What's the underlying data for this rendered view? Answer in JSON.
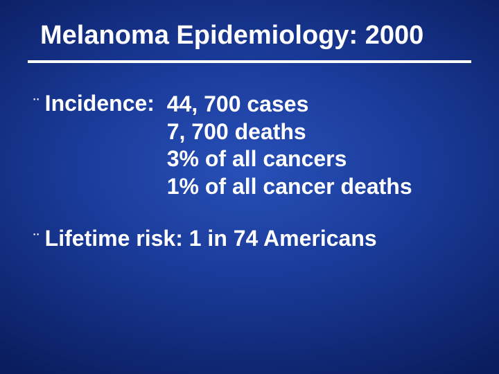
{
  "slide": {
    "title": "Melanoma Epidemiology: 2000",
    "background": {
      "gradient_center": "#2850b8",
      "gradient_mid": "#1a3a98",
      "gradient_outer": "#0a1e60",
      "gradient_edge": "#020830"
    },
    "title_style": {
      "fontsize": 38,
      "fontweight": "bold",
      "color": "#ffffff",
      "underline_color": "#ffffff",
      "underline_width": 4
    },
    "body_style": {
      "fontsize": 32,
      "fontweight": "bold",
      "color": "#ffffff",
      "bullet_char": "¨",
      "line_height": 1.24
    },
    "bullets": [
      {
        "label": "Incidence:  ",
        "values": [
          "44, 700 cases",
          "  7, 700 deaths",
          "  3% of all cancers",
          "  1% of all cancer deaths"
        ]
      },
      {
        "single": "Lifetime risk:  1 in 74 Americans"
      }
    ]
  }
}
